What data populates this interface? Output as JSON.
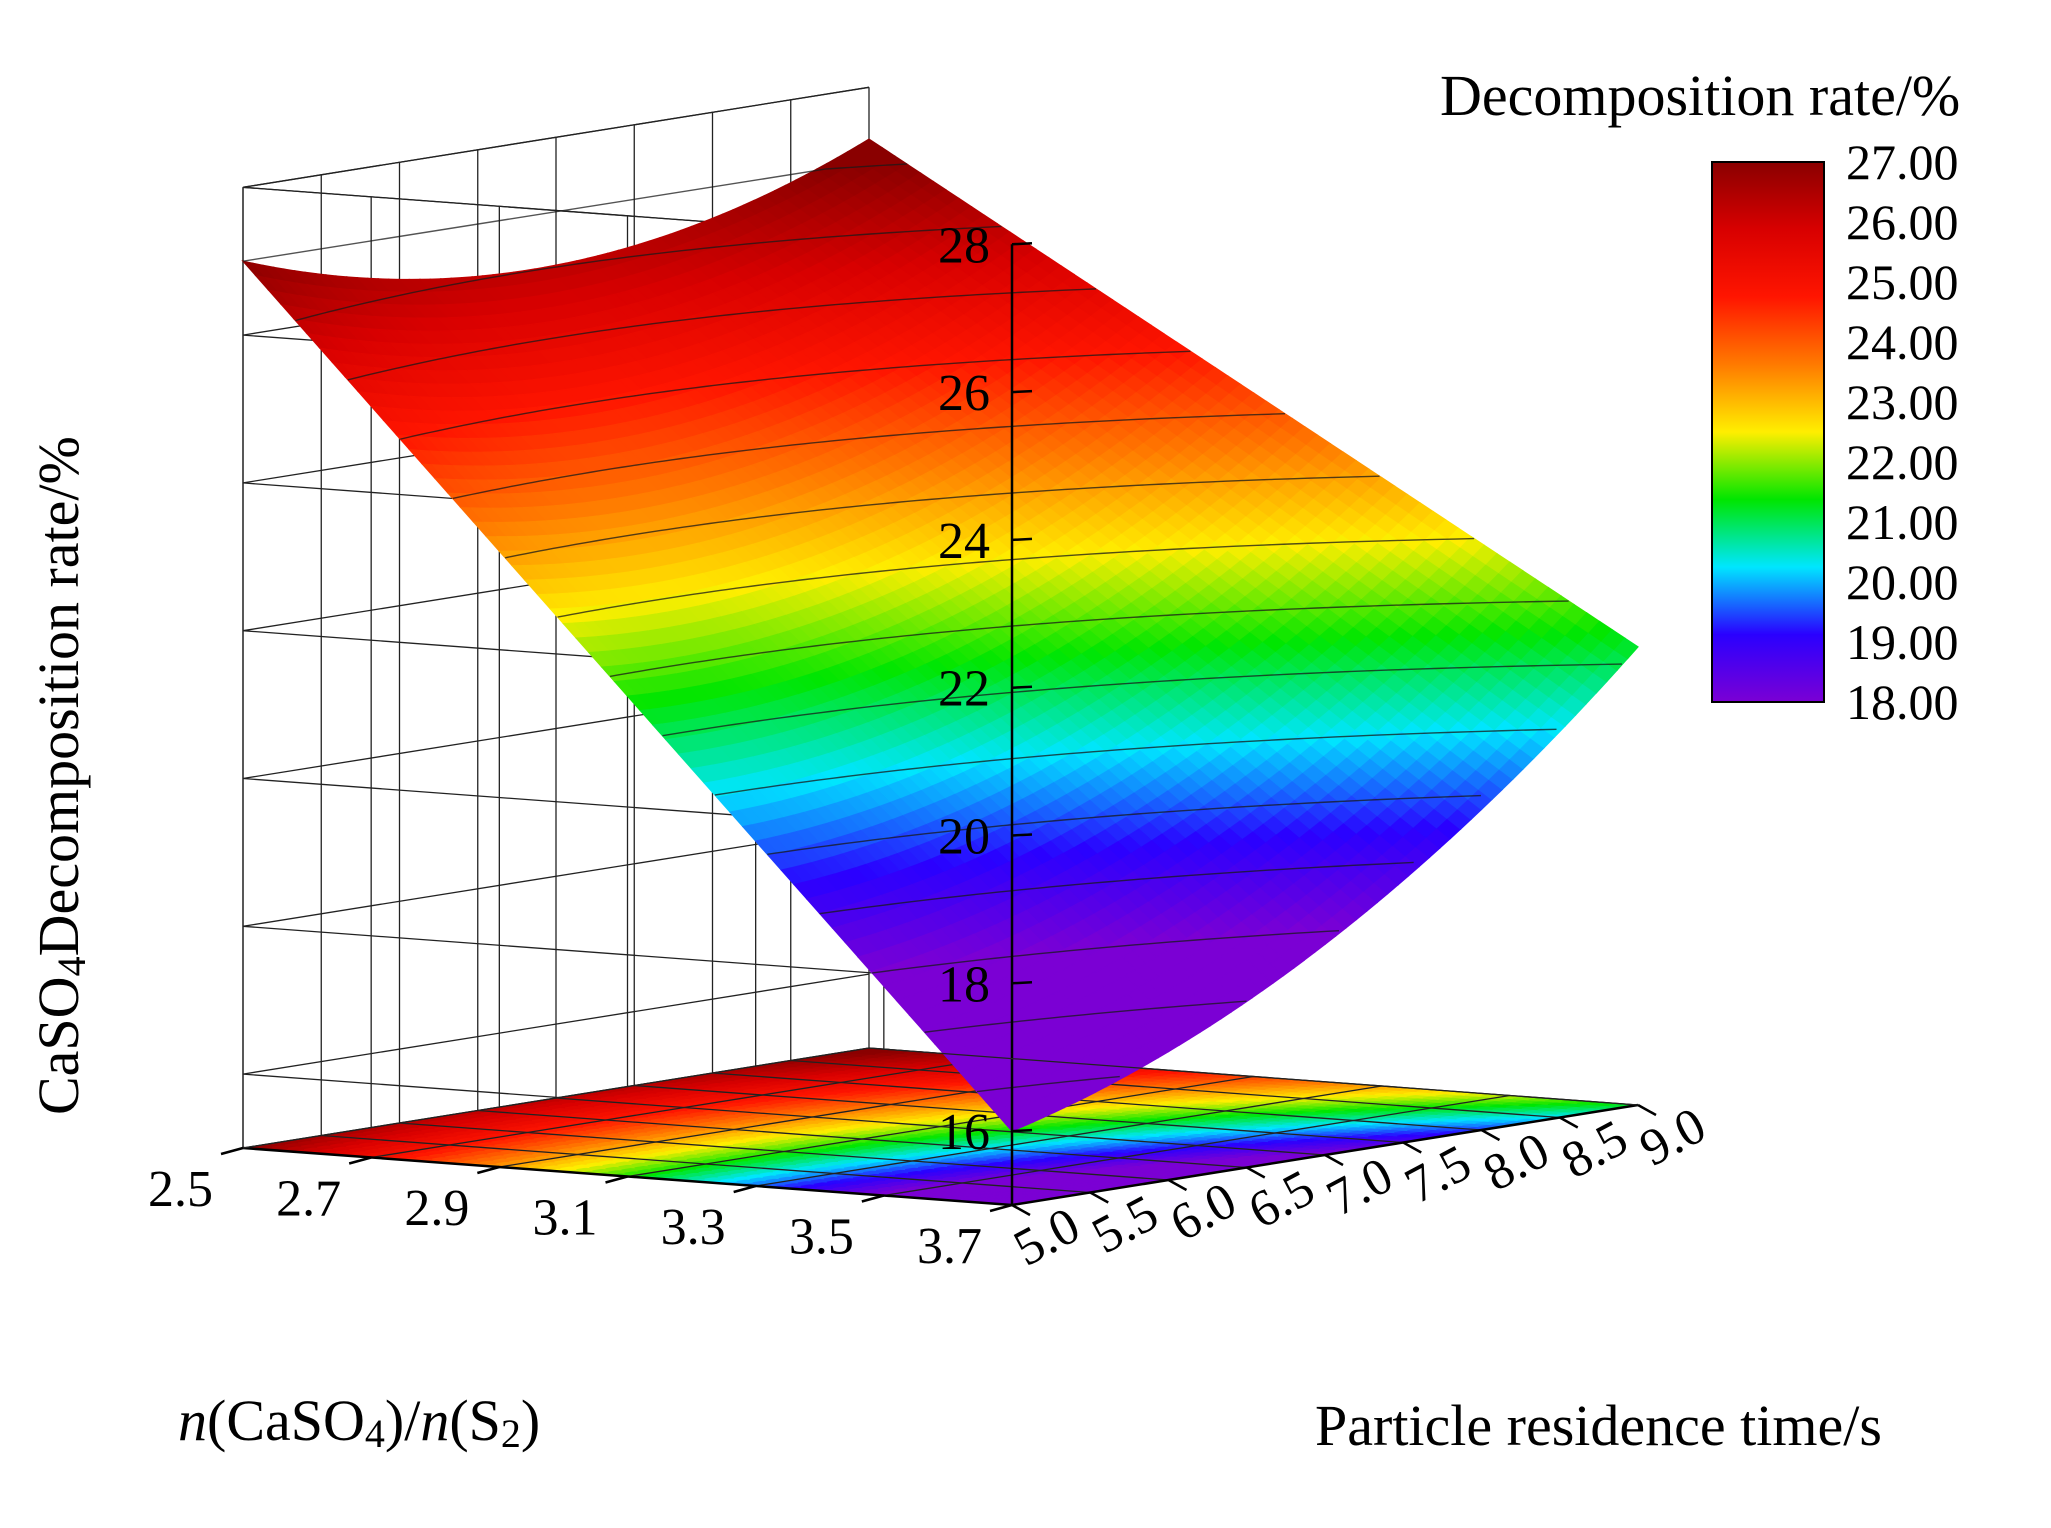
{
  "chart_data": {
    "type": "surface3d",
    "title": "",
    "zlabel": {
      "main": "CaSO",
      "sub": "4",
      "rest": "Decomposition rate/%"
    },
    "ylabel": {
      "italic1": "n",
      "part1": "(CaSO",
      "sub1": "4",
      "part2": ")/",
      "italic2": "n",
      "part3": "(S",
      "sub2": "2",
      "part4": ")"
    },
    "xlabel": "Particle residence time/s",
    "colorbar_title": "Decomposition rate/%",
    "x_axis": {
      "name": "Particle residence time",
      "range": [
        5.0,
        9.0
      ],
      "ticks": [
        "5.0",
        "5.5",
        "6.0",
        "6.5",
        "7.0",
        "7.5",
        "8.0",
        "8.5",
        "9.0"
      ]
    },
    "y_axis": {
      "name": "n(CaSO4)/n(S2)",
      "range": [
        2.5,
        3.7
      ],
      "ticks": [
        "2.5",
        "2.7",
        "2.9",
        "3.1",
        "3.3",
        "3.5",
        "3.7"
      ]
    },
    "z_axis": {
      "name": "CaSO4 Decomposition rate",
      "range": [
        15,
        28
      ],
      "ticks": [
        "16",
        "18",
        "20",
        "22",
        "24",
        "26",
        "28"
      ]
    },
    "colorbar": {
      "range": [
        18.0,
        27.0
      ],
      "ticks": [
        "27.00",
        "26.00",
        "25.00",
        "24.00",
        "23.00",
        "22.00",
        "21.00",
        "20.00",
        "19.00",
        "18.00"
      ]
    },
    "corner_values": [
      {
        "x": 5.0,
        "y": 2.5,
        "z": 27.0
      },
      {
        "x": 9.0,
        "y": 2.5,
        "z": 27.3
      },
      {
        "x": 5.0,
        "y": 3.7,
        "z": 16.0
      },
      {
        "x": 9.0,
        "y": 3.7,
        "z": 21.2
      }
    ],
    "colormap": [
      "#7b00d4",
      "#2a00ff",
      "#00e6ff",
      "#00e600",
      "#ffee00",
      "#ff7a00",
      "#ff1500",
      "#d80000",
      "#8a0000"
    ],
    "projection": "contour on base plane",
    "grid": true
  }
}
